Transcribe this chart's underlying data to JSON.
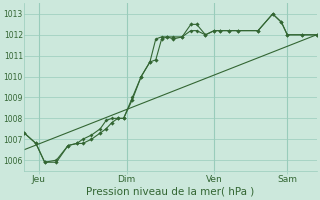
{
  "background_color": "#cce8dc",
  "grid_color": "#99ccbb",
  "line_color": "#336633",
  "tick_label_color": "#336633",
  "ylabel_ticks": [
    1006,
    1007,
    1008,
    1009,
    1010,
    1011,
    1012,
    1013
  ],
  "xlabel": "Pression niveau de la mer( hPa )",
  "xlabel_fontsize": 7.5,
  "day_labels": [
    "Jeu",
    "Dim",
    "Ven",
    "Sam"
  ],
  "day_positions": [
    0.5,
    3.5,
    6.5,
    9.0
  ],
  "xlim": [
    0.0,
    10.0
  ],
  "ylim": [
    1005.5,
    1013.5
  ],
  "line1": [
    [
      0.0,
      1007.3
    ],
    [
      0.4,
      1006.8
    ],
    [
      0.7,
      1005.9
    ],
    [
      1.1,
      1005.9
    ],
    [
      1.5,
      1006.7
    ],
    [
      1.8,
      1006.8
    ],
    [
      2.0,
      1006.8
    ],
    [
      2.3,
      1007.0
    ],
    [
      2.6,
      1007.3
    ],
    [
      2.8,
      1007.5
    ],
    [
      3.0,
      1007.8
    ],
    [
      3.2,
      1008.0
    ],
    [
      3.4,
      1008.0
    ],
    [
      3.7,
      1008.9
    ],
    [
      4.0,
      1010.0
    ],
    [
      4.3,
      1010.7
    ],
    [
      4.5,
      1010.8
    ],
    [
      4.7,
      1011.8
    ],
    [
      4.9,
      1011.9
    ],
    [
      5.1,
      1011.8
    ],
    [
      5.4,
      1011.9
    ],
    [
      5.7,
      1012.5
    ],
    [
      5.9,
      1012.5
    ],
    [
      6.2,
      1012.0
    ],
    [
      6.5,
      1012.2
    ],
    [
      6.7,
      1012.2
    ],
    [
      7.0,
      1012.2
    ],
    [
      7.3,
      1012.2
    ],
    [
      8.0,
      1012.2
    ],
    [
      8.5,
      1013.0
    ],
    [
      8.8,
      1012.6
    ],
    [
      9.0,
      1012.0
    ],
    [
      9.5,
      1012.0
    ],
    [
      10.0,
      1012.0
    ]
  ],
  "line2": [
    [
      0.0,
      1007.3
    ],
    [
      0.4,
      1006.8
    ],
    [
      0.7,
      1005.9
    ],
    [
      1.1,
      1006.0
    ],
    [
      1.5,
      1006.7
    ],
    [
      1.8,
      1006.8
    ],
    [
      2.0,
      1007.0
    ],
    [
      2.3,
      1007.2
    ],
    [
      2.6,
      1007.5
    ],
    [
      2.8,
      1007.9
    ],
    [
      3.0,
      1008.0
    ],
    [
      3.2,
      1008.0
    ],
    [
      3.4,
      1008.0
    ],
    [
      3.7,
      1009.0
    ],
    [
      4.0,
      1010.0
    ],
    [
      4.3,
      1010.7
    ],
    [
      4.5,
      1011.8
    ],
    [
      4.7,
      1011.9
    ],
    [
      4.9,
      1011.9
    ],
    [
      5.1,
      1011.9
    ],
    [
      5.4,
      1011.9
    ],
    [
      5.7,
      1012.2
    ],
    [
      5.9,
      1012.2
    ],
    [
      6.2,
      1012.0
    ],
    [
      6.5,
      1012.2
    ],
    [
      6.7,
      1012.2
    ],
    [
      7.0,
      1012.2
    ],
    [
      7.3,
      1012.2
    ],
    [
      8.0,
      1012.2
    ],
    [
      8.5,
      1013.0
    ],
    [
      8.8,
      1012.6
    ],
    [
      9.0,
      1012.0
    ],
    [
      9.5,
      1012.0
    ],
    [
      10.0,
      1012.0
    ]
  ],
  "line3": [
    [
      0.0,
      1006.5
    ],
    [
      10.0,
      1012.0
    ]
  ]
}
